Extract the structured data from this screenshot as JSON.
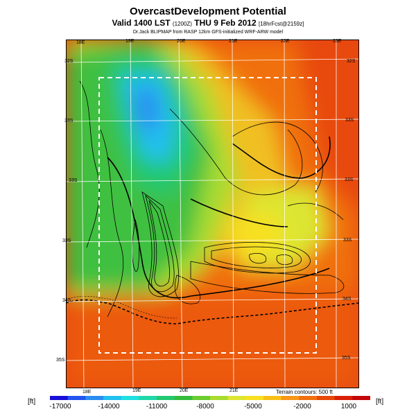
{
  "header": {
    "title": "OvercastDevelopment Potential",
    "valid_main": "Valid 1400 LST",
    "valid_utc": "(1200Z)",
    "valid_date": "THU 9 Feb 2012",
    "forecast": "[18hrFcst@2159z]",
    "credit": "Dr.Jack BLIPMAP from RASP 12km GFS-initialized WRF-ARW model"
  },
  "map": {
    "top_lon_labels": [
      "18E",
      "19E",
      "20E",
      "21E",
      "22E",
      "23E"
    ],
    "bottom_lon_labels": [
      "18E",
      "19E",
      "20E",
      "21E"
    ],
    "left_lat_labels": [
      "32S",
      "33S",
      "33S",
      "33S",
      "34S",
      "35S"
    ],
    "right_lat_labels": [
      "32S",
      "33S",
      "33S",
      "33S",
      "34S",
      "35S"
    ]
  },
  "footer": {
    "terrain_note": "Terrain contours: 500 ft",
    "unit_left": "[ft]",
    "unit_right": "[ft]"
  },
  "colorbar": {
    "labels": [
      "-17000",
      "-14000",
      "-11000",
      "-8000",
      "-5000",
      "-2000",
      "1000"
    ],
    "colors": [
      "#1a0fd8",
      "#2454f0",
      "#2a8cf0",
      "#22c0f0",
      "#1fe0e0",
      "#20d8a8",
      "#24c870",
      "#34bc3c",
      "#6ccc30",
      "#a8dc30",
      "#dce630",
      "#f8e020",
      "#f8c018",
      "#f89818",
      "#f07010",
      "#e84808",
      "#d82008",
      "#c40808"
    ]
  }
}
